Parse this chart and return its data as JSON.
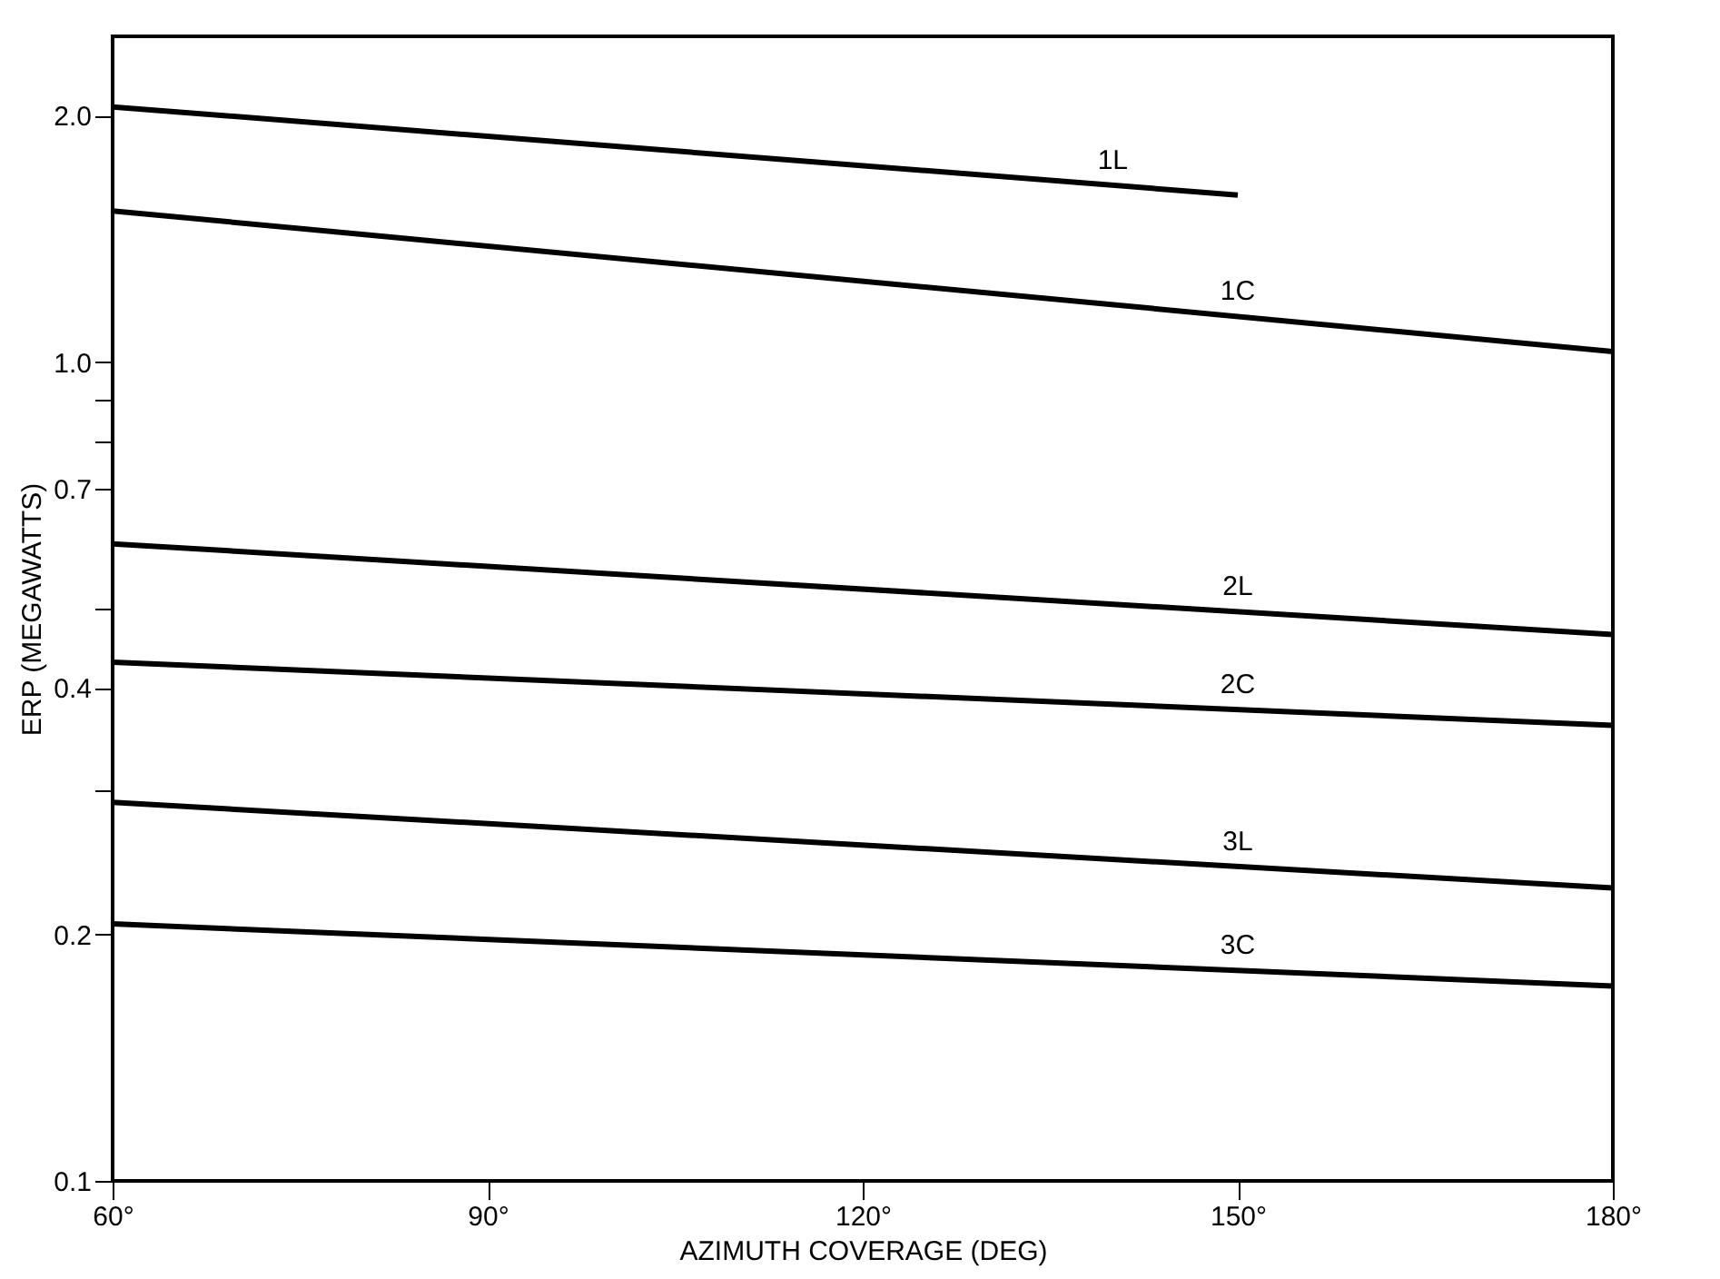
{
  "chart_data": {
    "type": "line",
    "xlabel": "AZIMUTH COVERAGE (DEG)",
    "ylabel": "ERP (MEGAWATTS)",
    "log": "y",
    "grid": false,
    "legend": false,
    "marker": "none",
    "line_style": "solid",
    "xlim": [
      60,
      180
    ],
    "xticks": [
      {
        "value": 60,
        "label": "60°"
      },
      {
        "value": 90,
        "label": "90°"
      },
      {
        "value": 120,
        "label": "120°"
      },
      {
        "value": 150,
        "label": "150°"
      },
      {
        "value": 180,
        "label": "180°"
      }
    ],
    "ylim": [
      0.1,
      2.5
    ],
    "yticks": [
      {
        "value": 0.1,
        "label": "0.1"
      },
      {
        "value": 0.2,
        "label": "0.2"
      },
      {
        "value": 0.3,
        "label": null
      },
      {
        "value": 0.4,
        "label": "0.4"
      },
      {
        "value": 0.5,
        "label": null
      },
      {
        "value": 0.7,
        "label": "0.7"
      },
      {
        "value": 0.8,
        "label": null
      },
      {
        "value": 0.9,
        "label": null
      },
      {
        "value": 1.0,
        "label": "1.0"
      },
      {
        "value": 2.0,
        "label": "2.0"
      }
    ],
    "series": [
      {
        "name": "1L",
        "color": "#000000",
        "x": [
          60,
          150
        ],
        "values": [
          2.05,
          1.6
        ]
      },
      {
        "name": "1C",
        "color": "#000000",
        "x": [
          60,
          180
        ],
        "values": [
          1.53,
          1.03
        ]
      },
      {
        "name": "2L",
        "color": "#000000",
        "x": [
          60,
          180
        ],
        "values": [
          0.6,
          0.465
        ]
      },
      {
        "name": "2C",
        "color": "#000000",
        "x": [
          60,
          180
        ],
        "values": [
          0.43,
          0.36
        ]
      },
      {
        "name": "3L",
        "color": "#000000",
        "x": [
          60,
          180
        ],
        "values": [
          0.29,
          0.228
        ]
      },
      {
        "name": "3C",
        "color": "#000000",
        "x": [
          60,
          180
        ],
        "values": [
          0.206,
          0.173
        ]
      }
    ]
  }
}
